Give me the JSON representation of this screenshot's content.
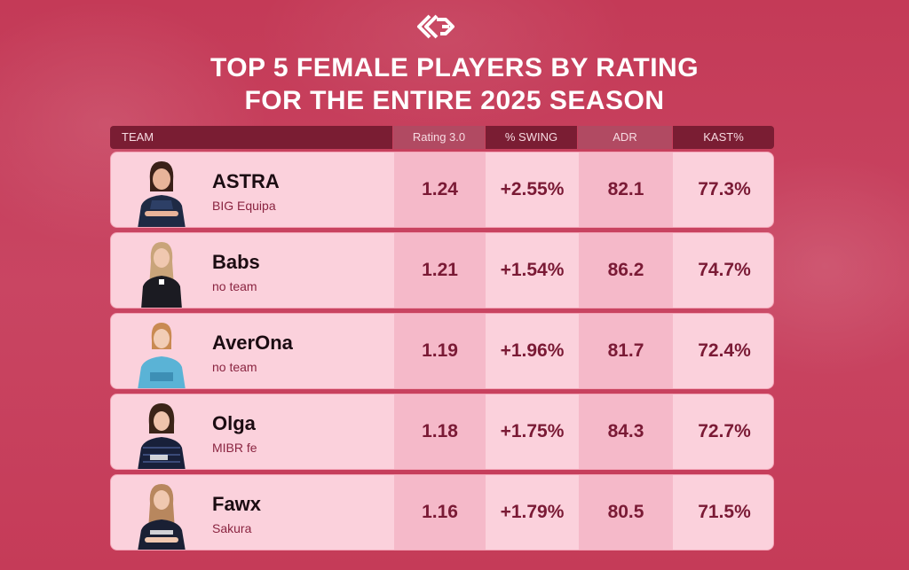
{
  "title": {
    "line1": "TOP 5 FEMALE PLAYERS BY RATING",
    "line2": "FOR THE ENTIRE 2025 SEASON"
  },
  "table": {
    "headers": {
      "team": "TEAM",
      "rating": "Rating 3.0",
      "swing": "% SWING",
      "adr": "ADR",
      "kast": "KAST%"
    },
    "rows": [
      {
        "name": "ASTRA",
        "team": "BIG Equipa",
        "rating": "1.24",
        "swing": "+2.55%",
        "adr": "82.1",
        "kast": "77.3%"
      },
      {
        "name": "Babs",
        "team": "no team",
        "rating": "1.21",
        "swing": "+1.54%",
        "adr": "86.2",
        "kast": "74.7%"
      },
      {
        "name": "AverOna",
        "team": "no team",
        "rating": "1.19",
        "swing": "+1.96%",
        "adr": "81.7",
        "kast": "72.4%"
      },
      {
        "name": "Olga",
        "team": "MIBR fe",
        "rating": "1.18",
        "swing": "+1.75%",
        "adr": "84.3",
        "kast": "72.7%"
      },
      {
        "name": "Fawx",
        "team": "Sakura",
        "rating": "1.16",
        "swing": "+1.79%",
        "adr": "80.5",
        "kast": "71.5%"
      }
    ]
  },
  "colors": {
    "background": "#c63a58",
    "header_dark": "#7a1d33",
    "header_light": "#b14a62",
    "row_bg": "#fbd1dc",
    "value_text": "#7a1a35"
  },
  "icons": {
    "logo": "brand-logo-icon",
    "avatar": "player-avatar-icon"
  }
}
